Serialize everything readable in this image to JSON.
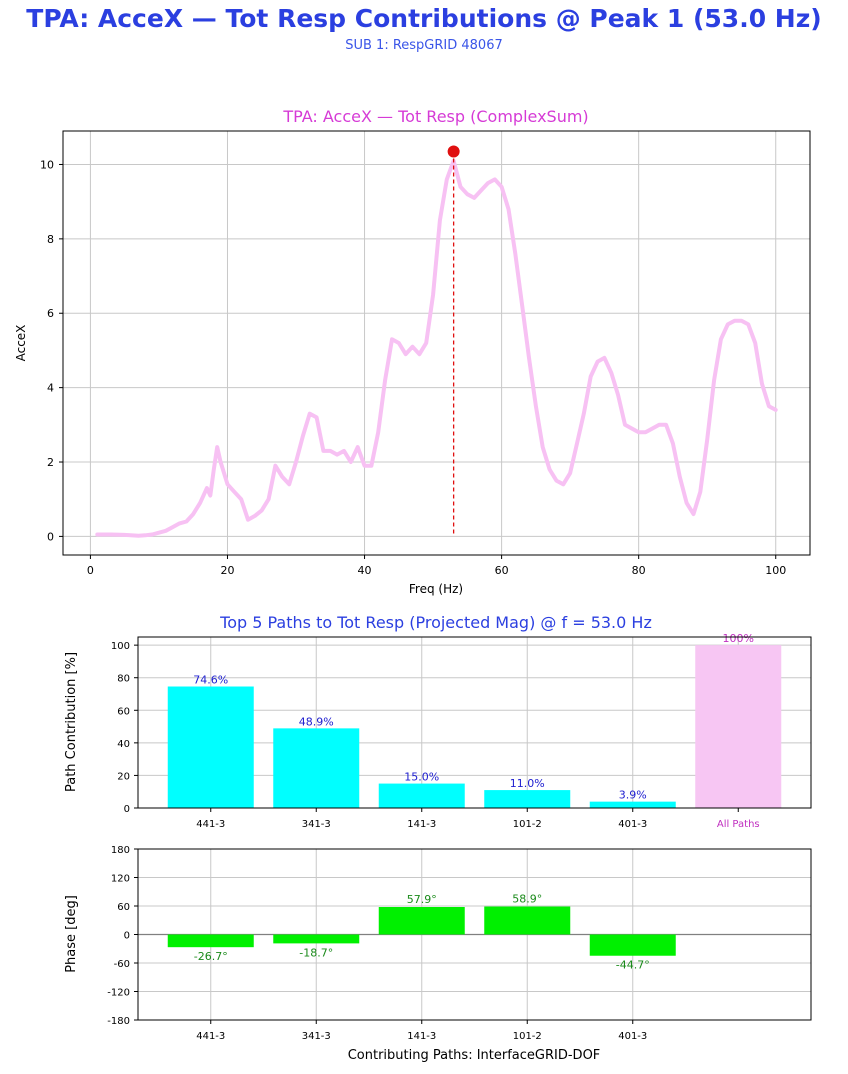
{
  "header": {
    "title": "TPA: AcceX — Tot Resp Contributions @ Peak 1 (53.0 Hz)",
    "subtitle": "SUB 1:  RespGRID 48067"
  },
  "colors": {
    "title": "#2b3fe0",
    "top_title": "#d63bd6",
    "line": "#f7c1f3",
    "peak_marker": "#e01010",
    "mag_bar": "#00ffff",
    "all_paths_bar": "#f7c6f3",
    "phase_bar": "#00f000",
    "bar_label": "#2020d0",
    "phase_label": "#1a8a1a",
    "all_paths_label": "#c030c0",
    "grid": "#c8c8c8"
  },
  "chart_data": [
    {
      "type": "line",
      "title": "TPA: AcceX — Tot Resp (ComplexSum)",
      "xlabel": "Freq (Hz)",
      "ylabel": "AcceX",
      "xlim": [
        -4,
        105
      ],
      "ylim": [
        -0.5,
        10.9
      ],
      "xticks": [
        0,
        20,
        40,
        60,
        80,
        100
      ],
      "yticks": [
        0,
        2,
        4,
        6,
        8,
        10
      ],
      "grid": true,
      "x": [
        1,
        3,
        5,
        7,
        8,
        9,
        10,
        11,
        12,
        13,
        14,
        15,
        16,
        17,
        17.5,
        18,
        18.5,
        19,
        20,
        21,
        22,
        23,
        24,
        25,
        26,
        27,
        28,
        29,
        30,
        31,
        32,
        33,
        34,
        35,
        36,
        37,
        38,
        39,
        40,
        41,
        42,
        43,
        44,
        45,
        46,
        47,
        48,
        49,
        50,
        51,
        52,
        53,
        54,
        55,
        56,
        57,
        58,
        59,
        60,
        61,
        62,
        63,
        64,
        65,
        66,
        67,
        68,
        69,
        70,
        71,
        72,
        73,
        74,
        75,
        76,
        77,
        78,
        79,
        80,
        81,
        82,
        83,
        84,
        85,
        86,
        87,
        88,
        89,
        90,
        91,
        92,
        93,
        94,
        95,
        96,
        97,
        98,
        99,
        100
      ],
      "y": [
        0.05,
        0.05,
        0.04,
        0.02,
        0.03,
        0.05,
        0.1,
        0.15,
        0.25,
        0.35,
        0.4,
        0.6,
        0.9,
        1.3,
        1.1,
        1.8,
        2.4,
        2.0,
        1.4,
        1.2,
        1.0,
        0.45,
        0.55,
        0.7,
        1.0,
        1.9,
        1.6,
        1.4,
        2.0,
        2.7,
        3.3,
        3.2,
        2.3,
        2.3,
        2.2,
        2.3,
        2.0,
        2.4,
        1.9,
        1.9,
        2.8,
        4.2,
        5.3,
        5.2,
        4.9,
        5.1,
        4.9,
        5.2,
        6.5,
        8.5,
        9.6,
        10.1,
        9.4,
        9.2,
        9.1,
        9.3,
        9.5,
        9.6,
        9.4,
        8.8,
        7.6,
        6.2,
        4.8,
        3.5,
        2.4,
        1.8,
        1.5,
        1.4,
        1.7,
        2.5,
        3.3,
        4.3,
        4.7,
        4.8,
        4.4,
        3.8,
        3.0,
        2.9,
        2.8,
        2.8,
        2.9,
        3.0,
        3.0,
        2.5,
        1.6,
        0.9,
        0.6,
        1.2,
        2.6,
        4.2,
        5.3,
        5.7,
        5.8,
        5.8,
        5.7,
        5.2,
        4.1,
        3.5,
        3.4
      ],
      "peak": {
        "x": 53.0,
        "y": 10.35
      }
    },
    {
      "type": "bar",
      "title": "Top 5 Paths to Tot Resp (Projected Mag) @ f = 53.0 Hz",
      "ylabel": "Path Contribution [%]",
      "ylim": [
        0,
        105
      ],
      "yticks": [
        0,
        20,
        40,
        60,
        80,
        100
      ],
      "grid": true,
      "categories": [
        "441-3",
        "341-3",
        "141-3",
        "101-2",
        "401-3",
        "All Paths"
      ],
      "values": [
        74.6,
        48.9,
        15.0,
        11.0,
        3.9,
        100
      ],
      "labels": [
        "74.6%",
        "48.9%",
        "15.0%",
        "11.0%",
        "3.9%",
        "100%"
      ]
    },
    {
      "type": "bar",
      "xlabel": "Contributing Paths: InterfaceGRID-DOF",
      "ylabel": "Phase [deg]",
      "ylim": [
        -180,
        180
      ],
      "yticks": [
        -180,
        -120,
        -60,
        0,
        60,
        120,
        180
      ],
      "grid": true,
      "categories": [
        "441-3",
        "341-3",
        "141-3",
        "101-2",
        "401-3"
      ],
      "values": [
        -26.7,
        -18.7,
        57.9,
        58.9,
        -44.7
      ],
      "labels": [
        "-26.7°",
        "-18.7°",
        "57.9°",
        "58.9°",
        "-44.7°"
      ]
    }
  ]
}
